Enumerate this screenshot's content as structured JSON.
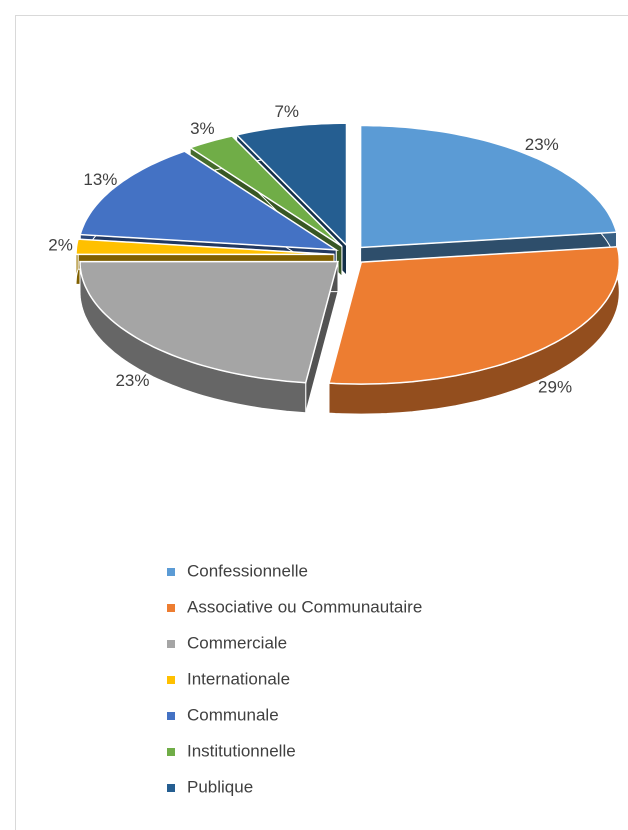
{
  "chart_data": {
    "type": "pie",
    "three_d": true,
    "exploded": true,
    "categories": [
      "Confessionnelle",
      "Associative ou Communautaire",
      "Commerciale",
      "Internationale",
      "Communale",
      "Institutionnelle",
      "Publique"
    ],
    "values": [
      23,
      29,
      23,
      2,
      13,
      3,
      7
    ],
    "value_labels": [
      "23%",
      "29%",
      "23%",
      "2%",
      "13%",
      "3%",
      "7%"
    ],
    "colors": [
      "#5b9bd5",
      "#ed7d31",
      "#a5a5a5",
      "#ffc000",
      "#4472c4",
      "#70ad47",
      "#255e91"
    ],
    "legend": "bottom"
  }
}
